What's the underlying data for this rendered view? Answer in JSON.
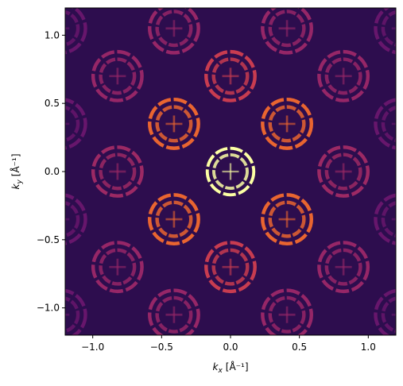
{
  "chart_data": {
    "type": "heatmap",
    "description_free": true,
    "xlabel_main": "k",
    "xlabel_sub": "x",
    "xlabel_unit": "[Å⁻¹]",
    "ylabel_main": "k",
    "ylabel_sub": "y",
    "ylabel_unit": "[Å⁻¹]",
    "xlim": [
      -1.2,
      1.2
    ],
    "ylim": [
      -1.2,
      1.2
    ],
    "xticks": [
      -1.0,
      -0.5,
      0.0,
      0.5,
      1.0
    ],
    "xtick_labels": [
      "−1.0",
      "−0.5",
      "0.0",
      "0.5",
      "1.0"
    ],
    "yticks": [
      1.0,
      0.5,
      0.0,
      -0.5,
      -1.0
    ],
    "ytick_labels": [
      "1.0",
      "0.5",
      "0.0",
      "−0.5",
      "−1.0"
    ],
    "colormap": "inferno",
    "background_color": "#2d0d4e",
    "grid": false,
    "rings": [
      {
        "cx": 0.0,
        "cy": 0.0,
        "r_outer": 0.18,
        "r_inner": 0.11,
        "intensity": 1.0
      },
      {
        "cx": -0.41,
        "cy": 0.35,
        "r_outer": 0.19,
        "r_inner": 0.11,
        "intensity": 0.75
      },
      {
        "cx": 0.41,
        "cy": 0.35,
        "r_outer": 0.19,
        "r_inner": 0.11,
        "intensity": 0.75
      },
      {
        "cx": -0.41,
        "cy": -0.35,
        "r_outer": 0.19,
        "r_inner": 0.11,
        "intensity": 0.75
      },
      {
        "cx": 0.41,
        "cy": -0.35,
        "r_outer": 0.19,
        "r_inner": 0.11,
        "intensity": 0.75
      },
      {
        "cx": 0.0,
        "cy": 0.7,
        "r_outer": 0.19,
        "r_inner": 0.11,
        "intensity": 0.62
      },
      {
        "cx": 0.0,
        "cy": -0.7,
        "r_outer": 0.19,
        "r_inner": 0.11,
        "intensity": 0.62
      },
      {
        "cx": -0.41,
        "cy": 1.05,
        "r_outer": 0.19,
        "r_inner": 0.11,
        "intensity": 0.45
      },
      {
        "cx": 0.41,
        "cy": 1.05,
        "r_outer": 0.19,
        "r_inner": 0.11,
        "intensity": 0.45
      },
      {
        "cx": -0.41,
        "cy": -1.05,
        "r_outer": 0.19,
        "r_inner": 0.11,
        "intensity": 0.45
      },
      {
        "cx": 0.41,
        "cy": -1.05,
        "r_outer": 0.19,
        "r_inner": 0.11,
        "intensity": 0.45
      },
      {
        "cx": -0.82,
        "cy": 0.7,
        "r_outer": 0.19,
        "r_inner": 0.11,
        "intensity": 0.45
      },
      {
        "cx": 0.82,
        "cy": 0.7,
        "r_outer": 0.19,
        "r_inner": 0.11,
        "intensity": 0.45
      },
      {
        "cx": -0.82,
        "cy": 0.0,
        "r_outer": 0.19,
        "r_inner": 0.11,
        "intensity": 0.47
      },
      {
        "cx": 0.82,
        "cy": 0.0,
        "r_outer": 0.19,
        "r_inner": 0.11,
        "intensity": 0.47
      },
      {
        "cx": -0.82,
        "cy": -0.7,
        "r_outer": 0.19,
        "r_inner": 0.11,
        "intensity": 0.45
      },
      {
        "cx": 0.82,
        "cy": -0.7,
        "r_outer": 0.19,
        "r_inner": 0.11,
        "intensity": 0.45
      },
      {
        "cx": -1.23,
        "cy": 1.05,
        "r_outer": 0.19,
        "r_inner": 0.11,
        "intensity": 0.3
      },
      {
        "cx": 1.23,
        "cy": 1.05,
        "r_outer": 0.19,
        "r_inner": 0.11,
        "intensity": 0.3
      },
      {
        "cx": -1.23,
        "cy": 0.35,
        "r_outer": 0.19,
        "r_inner": 0.11,
        "intensity": 0.3
      },
      {
        "cx": 1.23,
        "cy": 0.35,
        "r_outer": 0.19,
        "r_inner": 0.11,
        "intensity": 0.3
      },
      {
        "cx": -1.23,
        "cy": -0.35,
        "r_outer": 0.19,
        "r_inner": 0.11,
        "intensity": 0.3
      },
      {
        "cx": 1.23,
        "cy": -0.35,
        "r_outer": 0.19,
        "r_inner": 0.11,
        "intensity": 0.3
      },
      {
        "cx": -1.23,
        "cy": -1.05,
        "r_outer": 0.19,
        "r_inner": 0.11,
        "intensity": 0.3
      },
      {
        "cx": 1.23,
        "cy": -1.05,
        "r_outer": 0.19,
        "r_inner": 0.11,
        "intensity": 0.3
      }
    ]
  }
}
